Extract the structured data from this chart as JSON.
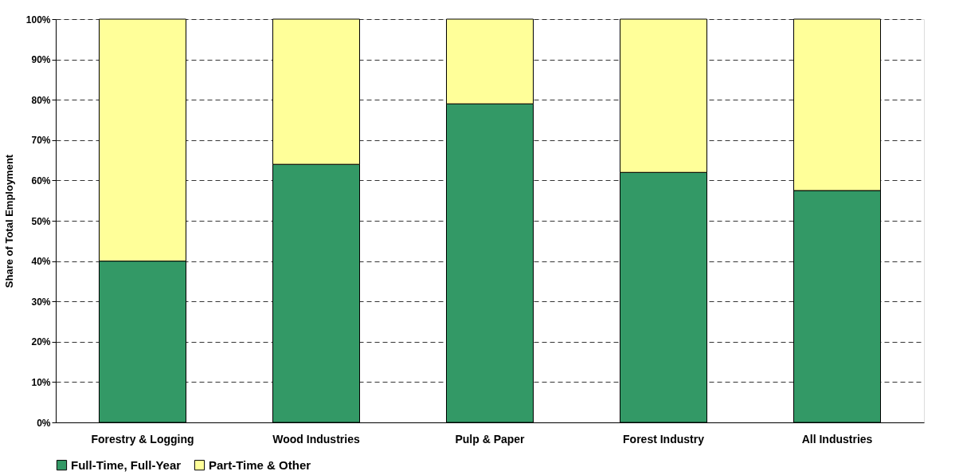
{
  "chart_data": {
    "type": "bar",
    "stacked": true,
    "ylabel": "Share of Total Employment",
    "categories": [
      "Forestry & Logging",
      "Wood Industries",
      "Pulp & Paper",
      "Forest Industry",
      "All Industries"
    ],
    "series": [
      {
        "name": "Full-Time, Full-Year",
        "color": "#339966",
        "values": [
          40,
          64,
          79,
          62,
          57.5
        ]
      },
      {
        "name": "Part-Time & Other",
        "color": "#ffff99",
        "values": [
          60,
          36,
          21,
          38,
          42.5
        ]
      }
    ],
    "ylim": [
      0,
      100
    ],
    "yticks": [
      {
        "value": 0,
        "label": "0%"
      },
      {
        "value": 10,
        "label": "10%"
      },
      {
        "value": 20,
        "label": "20%"
      },
      {
        "value": 30,
        "label": "30%"
      },
      {
        "value": 40,
        "label": "40%"
      },
      {
        "value": 50,
        "label": "50%"
      },
      {
        "value": 60,
        "label": "60%"
      },
      {
        "value": 70,
        "label": "70%"
      },
      {
        "value": 80,
        "label": "80%"
      },
      {
        "value": 90,
        "label": "90%"
      },
      {
        "value": 100,
        "label": "100%"
      }
    ],
    "grid": "y",
    "legend": "bottom"
  }
}
